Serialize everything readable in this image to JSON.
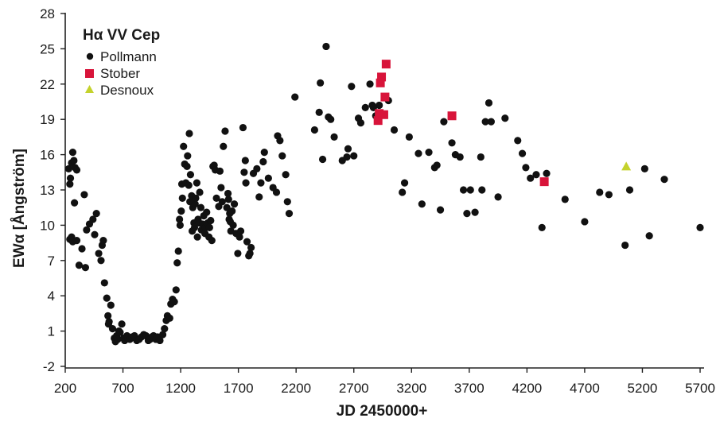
{
  "chart_data": {
    "type": "scatter",
    "title": "",
    "xlabel": "JD 2450000+",
    "ylabel": "EWα [Ångström]",
    "xlim": [
      200,
      5700
    ],
    "ylim": [
      -2,
      28
    ],
    "xticks": [
      200,
      700,
      1200,
      1700,
      2200,
      2700,
      3200,
      3700,
      4200,
      4700,
      5200,
      5700
    ],
    "yticks": [
      -2,
      1,
      4,
      7,
      10,
      13,
      16,
      19,
      22,
      25,
      28
    ],
    "grid": false,
    "legend": {
      "title": "Hα VV Cep",
      "position": "top-left"
    },
    "colors": {
      "Pollmann": "#111111",
      "Stober": "#d8143a",
      "Desnoux": "#c4d22c"
    },
    "series": [
      {
        "name": "Pollmann",
        "marker": "circle",
        "points": [
          [
            230,
            14.8
          ],
          [
            240,
            13.5
          ],
          [
            245,
            14.0
          ],
          [
            255,
            15.3
          ],
          [
            265,
            16.2
          ],
          [
            275,
            15.5
          ],
          [
            285,
            14.9
          ],
          [
            300,
            14.7
          ],
          [
            240,
            8.8
          ],
          [
            255,
            9.0
          ],
          [
            265,
            8.6
          ],
          [
            280,
            11.9
          ],
          [
            300,
            8.7
          ],
          [
            320,
            6.6
          ],
          [
            345,
            8.0
          ],
          [
            365,
            12.6
          ],
          [
            385,
            9.6
          ],
          [
            375,
            6.4
          ],
          [
            410,
            10.1
          ],
          [
            440,
            10.5
          ],
          [
            455,
            9.2
          ],
          [
            470,
            11.0
          ],
          [
            490,
            7.6
          ],
          [
            510,
            7.0
          ],
          [
            520,
            8.3
          ],
          [
            530,
            8.7
          ],
          [
            540,
            5.1
          ],
          [
            560,
            3.8
          ],
          [
            570,
            2.3
          ],
          [
            575,
            1.6
          ],
          [
            580,
            1.8
          ],
          [
            595,
            3.2
          ],
          [
            610,
            1.2
          ],
          [
            625,
            0.4
          ],
          [
            635,
            0.1
          ],
          [
            645,
            0.6
          ],
          [
            655,
            0.3
          ],
          [
            665,
            1.0
          ],
          [
            675,
            0.9
          ],
          [
            690,
            1.6
          ],
          [
            705,
            0.4
          ],
          [
            715,
            0.2
          ],
          [
            735,
            0.6
          ],
          [
            745,
            0.4
          ],
          [
            760,
            0.3
          ],
          [
            780,
            0.5
          ],
          [
            800,
            0.6
          ],
          [
            820,
            0.2
          ],
          [
            840,
            0.3
          ],
          [
            860,
            0.5
          ],
          [
            880,
            0.7
          ],
          [
            900,
            0.6
          ],
          [
            920,
            0.2
          ],
          [
            935,
            0.3
          ],
          [
            950,
            0.5
          ],
          [
            965,
            0.6
          ],
          [
            985,
            0.3
          ],
          [
            1000,
            0.5
          ],
          [
            1020,
            0.2
          ],
          [
            1045,
            0.7
          ],
          [
            1060,
            1.2
          ],
          [
            1075,
            1.9
          ],
          [
            1085,
            2.3
          ],
          [
            1105,
            2.1
          ],
          [
            1115,
            3.3
          ],
          [
            1130,
            3.7
          ],
          [
            1145,
            3.5
          ],
          [
            1160,
            4.5
          ],
          [
            1170,
            6.8
          ],
          [
            1180,
            7.8
          ],
          [
            1190,
            10.5
          ],
          [
            1195,
            10.0
          ],
          [
            1210,
            13.5
          ],
          [
            1205,
            11.2
          ],
          [
            1215,
            12.3
          ],
          [
            1225,
            16.7
          ],
          [
            1235,
            15.2
          ],
          [
            1245,
            13.6
          ],
          [
            1255,
            15.0
          ],
          [
            1260,
            15.9
          ],
          [
            1270,
            13.4
          ],
          [
            1275,
            17.8
          ],
          [
            1280,
            12.0
          ],
          [
            1285,
            14.3
          ],
          [
            1295,
            12.5
          ],
          [
            1300,
            9.5
          ],
          [
            1305,
            11.5
          ],
          [
            1315,
            10.2
          ],
          [
            1320,
            9.8
          ],
          [
            1325,
            11.8
          ],
          [
            1330,
            12.3
          ],
          [
            1340,
            13.6
          ],
          [
            1345,
            9.0
          ],
          [
            1350,
            10.5
          ],
          [
            1360,
            10.2
          ],
          [
            1365,
            12.8
          ],
          [
            1375,
            11.5
          ],
          [
            1380,
            9.6
          ],
          [
            1390,
            10.1
          ],
          [
            1400,
            10.8
          ],
          [
            1410,
            9.3
          ],
          [
            1415,
            9.8
          ],
          [
            1425,
            11.1
          ],
          [
            1435,
            10.2
          ],
          [
            1445,
            9.0
          ],
          [
            1450,
            9.8
          ],
          [
            1460,
            10.4
          ],
          [
            1470,
            8.7
          ],
          [
            1480,
            15.0
          ],
          [
            1490,
            15.1
          ],
          [
            1500,
            14.7
          ],
          [
            1510,
            12.3
          ],
          [
            1530,
            11.6
          ],
          [
            1540,
            14.6
          ],
          [
            1550,
            13.2
          ],
          [
            1560,
            12.0
          ],
          [
            1570,
            16.7
          ],
          [
            1585,
            18.0
          ],
          [
            1600,
            11.5
          ],
          [
            1610,
            12.7
          ],
          [
            1615,
            12.2
          ],
          [
            1620,
            10.5
          ],
          [
            1625,
            11.0
          ],
          [
            1630,
            10.3
          ],
          [
            1635,
            9.5
          ],
          [
            1645,
            11.2
          ],
          [
            1655,
            10.0
          ],
          [
            1665,
            11.8
          ],
          [
            1680,
            9.3
          ],
          [
            1695,
            7.6
          ],
          [
            1710,
            9.0
          ],
          [
            1720,
            9.5
          ],
          [
            1740,
            18.3
          ],
          [
            1750,
            14.5
          ],
          [
            1760,
            15.5
          ],
          [
            1765,
            13.6
          ],
          [
            1775,
            8.6
          ],
          [
            1790,
            7.4
          ],
          [
            1800,
            7.6
          ],
          [
            1810,
            8.1
          ],
          [
            1830,
            14.4
          ],
          [
            1860,
            14.8
          ],
          [
            1880,
            12.4
          ],
          [
            1895,
            13.6
          ],
          [
            1915,
            15.4
          ],
          [
            1925,
            16.2
          ],
          [
            1960,
            14.0
          ],
          [
            2000,
            13.2
          ],
          [
            2030,
            12.8
          ],
          [
            2040,
            17.6
          ],
          [
            2060,
            17.2
          ],
          [
            2080,
            15.9
          ],
          [
            2110,
            14.3
          ],
          [
            2125,
            12.0
          ],
          [
            2140,
            11.0
          ],
          [
            2190,
            20.9
          ],
          [
            2360,
            18.1
          ],
          [
            2400,
            19.6
          ],
          [
            2410,
            22.1
          ],
          [
            2430,
            15.6
          ],
          [
            2460,
            25.2
          ],
          [
            2480,
            19.2
          ],
          [
            2500,
            19.0
          ],
          [
            2530,
            17.5
          ],
          [
            2600,
            15.5
          ],
          [
            2640,
            15.8
          ],
          [
            2650,
            16.5
          ],
          [
            2680,
            21.8
          ],
          [
            2700,
            15.9
          ],
          [
            2740,
            19.1
          ],
          [
            2760,
            18.7
          ],
          [
            2800,
            20.0
          ],
          [
            2840,
            22.0
          ],
          [
            2860,
            20.2
          ],
          [
            2870,
            20.0
          ],
          [
            2890,
            19.3
          ],
          [
            2920,
            20.2
          ],
          [
            3000,
            20.6
          ],
          [
            3050,
            18.1
          ],
          [
            3120,
            12.8
          ],
          [
            3140,
            13.6
          ],
          [
            3180,
            17.5
          ],
          [
            3260,
            16.1
          ],
          [
            3290,
            11.8
          ],
          [
            3350,
            16.2
          ],
          [
            3400,
            14.9
          ],
          [
            3420,
            15.1
          ],
          [
            3450,
            11.3
          ],
          [
            3480,
            18.8
          ],
          [
            3550,
            17.0
          ],
          [
            3580,
            16.0
          ],
          [
            3620,
            15.8
          ],
          [
            3650,
            13.0
          ],
          [
            3680,
            11.0
          ],
          [
            3710,
            13.0
          ],
          [
            3750,
            11.1
          ],
          [
            3800,
            15.8
          ],
          [
            3810,
            13.0
          ],
          [
            3840,
            18.8
          ],
          [
            3870,
            20.4
          ],
          [
            3890,
            18.8
          ],
          [
            3950,
            12.4
          ],
          [
            4010,
            19.1
          ],
          [
            4120,
            17.2
          ],
          [
            4160,
            16.1
          ],
          [
            4190,
            14.9
          ],
          [
            4230,
            14.0
          ],
          [
            4280,
            14.3
          ],
          [
            4330,
            9.8
          ],
          [
            4370,
            14.4
          ],
          [
            4530,
            12.2
          ],
          [
            4700,
            10.3
          ],
          [
            4830,
            12.8
          ],
          [
            4910,
            12.6
          ],
          [
            5050,
            8.3
          ],
          [
            5090,
            13.0
          ],
          [
            5220,
            14.8
          ],
          [
            5260,
            9.1
          ],
          [
            5390,
            13.9
          ],
          [
            5700,
            9.8
          ]
        ]
      },
      {
        "name": "Stober",
        "marker": "square",
        "points": [
          [
            2910,
            18.9
          ],
          [
            2920,
            19.5
          ],
          [
            2930,
            22.1
          ],
          [
            2940,
            22.6
          ],
          [
            2960,
            19.4
          ],
          [
            2970,
            20.9
          ],
          [
            2980,
            23.7
          ],
          [
            3550,
            19.3
          ],
          [
            4350,
            13.7
          ]
        ]
      },
      {
        "name": "Desnoux",
        "marker": "triangle",
        "points": [
          [
            5060,
            15.0
          ]
        ]
      }
    ]
  }
}
